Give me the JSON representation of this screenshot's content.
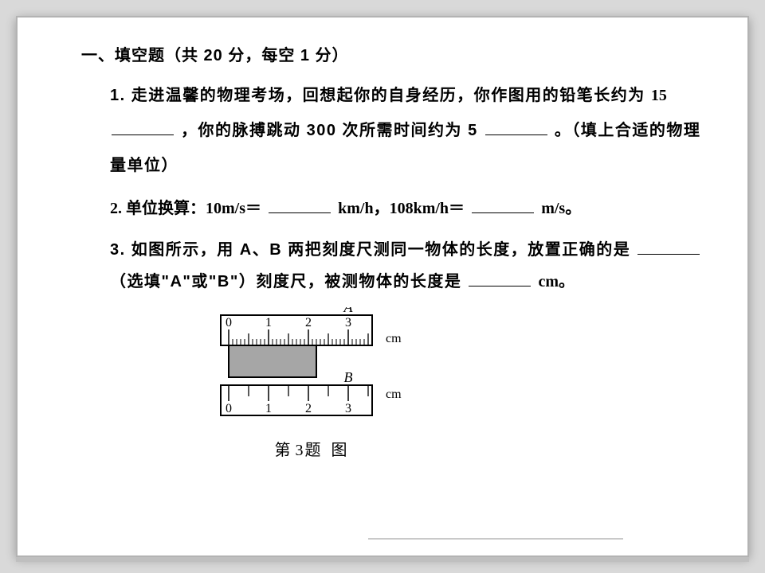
{
  "section": {
    "title": "一、填空题（共 20 分，每空 1 分）"
  },
  "q1": {
    "prefix": "1. 走进温馨的物理考场，回想起你的自身经历，你作图用的铅笔长约为",
    "val1_num": "15",
    "mid": "，你的脉搏跳动 300 次所需时间约为 5",
    "suffix": "。（填上合适的物理量单位）"
  },
  "q2": {
    "prefix": "2. 单位换算：10m/s＝",
    "mid_unit": " km/h，108km/h＝",
    "end_unit": " m/s。"
  },
  "q3": {
    "line1": "3. 如图所示，用 A、B 两把刻度尺测同一物体的长度，放置正确的是",
    "blank_hint": "（选填\"A\"或\"B\"）刻度尺，被测物体的长度是",
    "end": " cm。"
  },
  "figure": {
    "labels": {
      "A": "A",
      "B": "B",
      "cm": "cm"
    },
    "ticks": [
      "0",
      "1",
      "2",
      "3"
    ],
    "caption_prefix": "第",
    "caption_num": "3",
    "caption_suffix": "题 图",
    "colors": {
      "stroke": "#000000",
      "object_fill": "#a6a6a6",
      "bg": "#ffffff"
    }
  }
}
